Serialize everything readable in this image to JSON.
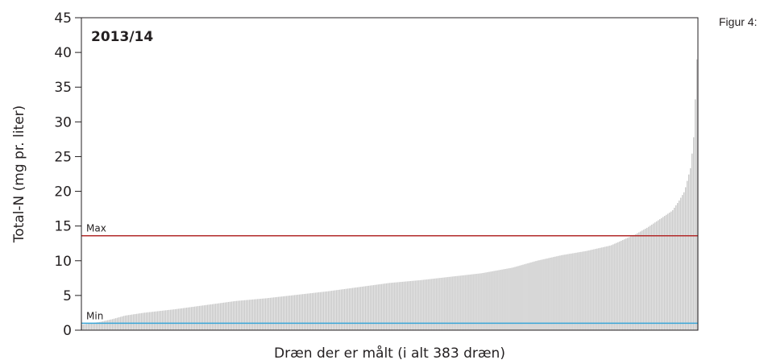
{
  "caption": "Figur 4:",
  "chart_data": {
    "type": "bar",
    "title": "2013/14",
    "xlabel": "Dræn der er målt (i alt 383 dræn)",
    "ylabel": "Total-N (mg pr. liter)",
    "ylim": [
      0,
      45
    ],
    "yticks": [
      0,
      5,
      10,
      15,
      20,
      25,
      30,
      35,
      40,
      45
    ],
    "n_bars": 383,
    "bar_color": "#c8c8c8",
    "sorted_profile": [
      [
        0,
        0.8
      ],
      [
        0.03,
        1.2
      ],
      [
        0.05,
        1.6
      ],
      [
        0.07,
        2.1
      ],
      [
        0.1,
        2.5
      ],
      [
        0.15,
        3.0
      ],
      [
        0.2,
        3.6
      ],
      [
        0.25,
        4.2
      ],
      [
        0.3,
        4.6
      ],
      [
        0.35,
        5.1
      ],
      [
        0.4,
        5.6
      ],
      [
        0.45,
        6.2
      ],
      [
        0.5,
        6.8
      ],
      [
        0.55,
        7.2
      ],
      [
        0.6,
        7.7
      ],
      [
        0.65,
        8.2
      ],
      [
        0.7,
        9.0
      ],
      [
        0.74,
        10.0
      ],
      [
        0.78,
        10.8
      ],
      [
        0.82,
        11.4
      ],
      [
        0.86,
        12.2
      ],
      [
        0.88,
        13.0
      ],
      [
        0.9,
        13.8
      ],
      [
        0.92,
        14.8
      ],
      [
        0.94,
        16.0
      ],
      [
        0.96,
        17.2
      ],
      [
        0.97,
        18.5
      ],
      [
        0.98,
        20.0
      ],
      [
        0.99,
        23.5
      ],
      [
        0.995,
        28.0
      ],
      [
        1.0,
        39.0
      ]
    ],
    "reference_lines": [
      {
        "label": "Max",
        "value": 13.6,
        "color": "#b22a2a"
      },
      {
        "label": "Min",
        "value": 1.0,
        "color": "#3aa6d8"
      }
    ]
  }
}
